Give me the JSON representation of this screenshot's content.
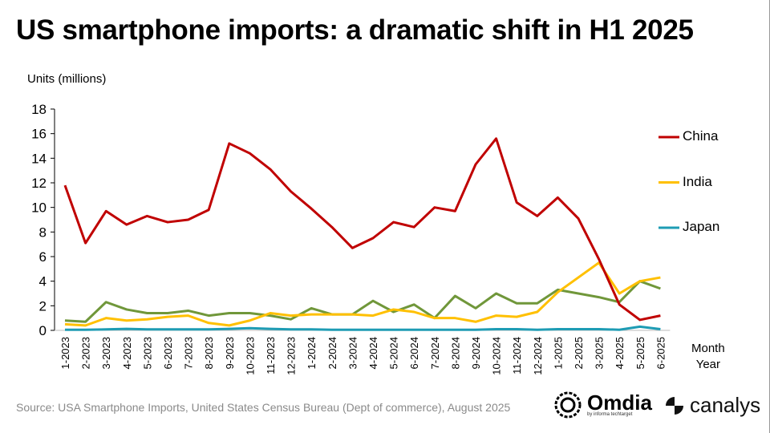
{
  "title": "US smartphone imports: a dramatic shift in H1 2025",
  "source": "Source: USA Smartphone Imports, United States Census Bureau (Dept of commerce), August 2025",
  "logos": {
    "omdia": "Omdia",
    "omdia_sub": "by informa techtarget",
    "canalys": "canalys"
  },
  "chart_data": {
    "type": "line",
    "title": "US smartphone imports: a dramatic shift in H1 2025",
    "ylabel": "Units (millions)",
    "xlabel": [
      "Month",
      "Year"
    ],
    "ylim": [
      0,
      18
    ],
    "yticks": [
      0,
      2,
      4,
      6,
      8,
      10,
      12,
      14,
      16,
      18
    ],
    "grid": false,
    "legend_position": "right",
    "categories": [
      "1-2023",
      "2-2023",
      "3-2023",
      "4-2023",
      "5-2023",
      "6-2023",
      "7-2023",
      "8-2023",
      "9-2023",
      "10-2023",
      "11-2023",
      "12-2023",
      "1-2024",
      "2-2024",
      "3-2024",
      "4-2024",
      "5-2024",
      "6-2024",
      "7-2024",
      "8-2024",
      "9-2024",
      "10-2024",
      "11-2024",
      "12-2024",
      "1-2025",
      "2-2025",
      "3-2025",
      "4-2025",
      "5-2025",
      "6-2025"
    ],
    "series": [
      {
        "name": "China",
        "color": "#C00000",
        "legend": true,
        "values": [
          11.8,
          7.1,
          9.7,
          8.6,
          9.3,
          8.8,
          9.0,
          9.8,
          15.2,
          14.4,
          13.1,
          11.3,
          9.9,
          8.4,
          6.7,
          7.5,
          8.8,
          8.4,
          10.0,
          9.7,
          13.5,
          15.6,
          10.4,
          9.3,
          10.8,
          9.1,
          5.8,
          2.1,
          0.85,
          1.2
        ]
      },
      {
        "name": "India",
        "color": "#FFC000",
        "legend": true,
        "values": [
          0.5,
          0.4,
          1.0,
          0.8,
          0.9,
          1.1,
          1.2,
          0.6,
          0.4,
          0.8,
          1.4,
          1.2,
          1.3,
          1.3,
          1.3,
          1.2,
          1.7,
          1.5,
          1.0,
          1.0,
          0.7,
          1.2,
          1.1,
          1.5,
          3.1,
          4.3,
          5.5,
          3.0,
          4.0,
          4.3
        ]
      },
      {
        "name": "Japan",
        "color": "#1E9CB4",
        "legend": true,
        "values": [
          0.05,
          0.05,
          0.08,
          0.12,
          0.08,
          0.08,
          0.08,
          0.08,
          0.12,
          0.18,
          0.12,
          0.08,
          0.08,
          0.05,
          0.05,
          0.05,
          0.05,
          0.05,
          0.05,
          0.05,
          0.05,
          0.1,
          0.1,
          0.05,
          0.1,
          0.1,
          0.1,
          0.05,
          0.3,
          0.1
        ]
      },
      {
        "name": "",
        "color": "#70973A",
        "legend": false,
        "values": [
          0.8,
          0.7,
          2.3,
          1.7,
          1.4,
          1.4,
          1.6,
          1.2,
          1.4,
          1.4,
          1.2,
          0.9,
          1.8,
          1.3,
          1.3,
          2.4,
          1.5,
          2.1,
          1.0,
          2.8,
          1.8,
          3.0,
          2.2,
          2.2,
          3.3,
          3.0,
          2.7,
          2.3,
          4.0,
          3.4
        ]
      }
    ]
  }
}
